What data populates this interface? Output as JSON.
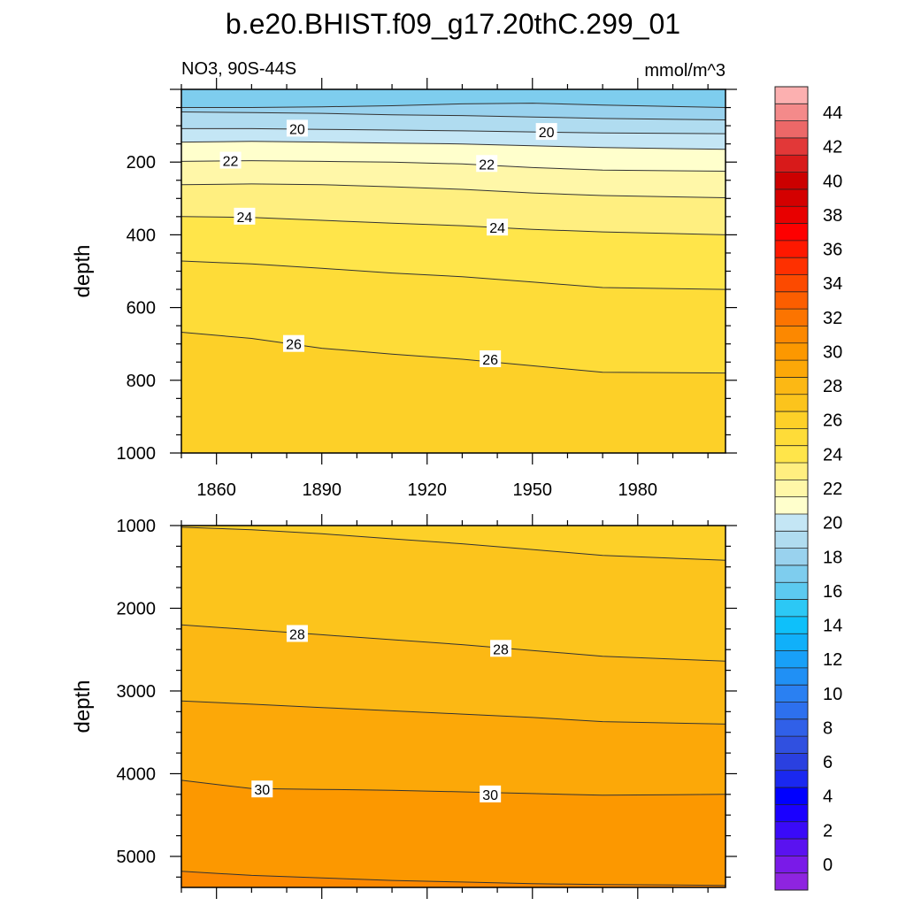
{
  "chart_data": {
    "type": "contour",
    "title": "b.e20.BHIST.f09_g17.20thC.299_01",
    "variable_label": "NO3, 90S-44S",
    "units_label": "mmol/m^3",
    "xaxis": {
      "range": [
        1850,
        2005
      ],
      "ticks": [
        1860,
        1890,
        1920,
        1950,
        1980
      ],
      "tick_labels": [
        "1860",
        "1890",
        "1920",
        "1950",
        "1980"
      ]
    },
    "panels": [
      {
        "name": "upper",
        "ylabel": "depth",
        "ylim": [
          0,
          1000
        ],
        "yticks": [
          200,
          400,
          600,
          800,
          1000
        ],
        "ytick_labels": [
          "200",
          "400",
          "600",
          "800",
          "1000"
        ],
        "contours": [
          {
            "level": 18,
            "depths": [
              50,
              50,
              48,
              45,
              40,
              38,
              43,
              50
            ]
          },
          {
            "level": 19,
            "depths": [
              62,
              64,
              66,
              70,
              72,
              76,
              80,
              84
            ]
          },
          {
            "level": 20,
            "depths": [
              108,
              108,
              110,
              112,
              114,
              117,
              120,
              122
            ]
          },
          {
            "level": 21,
            "depths": [
              145,
              143,
              145,
              148,
              150,
              155,
              160,
              165
            ]
          },
          {
            "level": 22,
            "depths": [
              198,
              196,
              198,
              200,
              205,
              215,
              222,
              225
            ]
          },
          {
            "level": 23,
            "depths": [
              262,
              260,
              262,
              268,
              275,
              285,
              292,
              298
            ]
          },
          {
            "level": 24,
            "depths": [
              350,
              352,
              360,
              368,
              375,
              385,
              392,
              400
            ]
          },
          {
            "level": 25,
            "depths": [
              472,
              480,
              492,
              505,
              515,
              530,
              545,
              550
            ]
          },
          {
            "level": 26,
            "depths": [
              668,
              685,
              712,
              728,
              742,
              760,
              778,
              780
            ]
          }
        ],
        "contour_labels": [
          {
            "text": "20",
            "x": 1883,
            "depth": 108
          },
          {
            "text": "20",
            "x": 1954,
            "depth": 117
          },
          {
            "text": "22",
            "x": 1864,
            "depth": 196
          },
          {
            "text": "22",
            "x": 1937,
            "depth": 205
          },
          {
            "text": "24",
            "x": 1868,
            "depth": 350
          },
          {
            "text": "24",
            "x": 1940,
            "depth": 380
          },
          {
            "text": "26",
            "x": 1882,
            "depth": 700
          },
          {
            "text": "26",
            "x": 1938,
            "depth": 742
          }
        ]
      },
      {
        "name": "lower",
        "ylabel": "depth",
        "ylim": [
          1000,
          5375
        ],
        "yticks": [
          1000,
          2000,
          3000,
          4000,
          5000
        ],
        "ytick_labels": [
          "1000",
          "2000",
          "3000",
          "4000",
          "5000"
        ],
        "contours": [
          {
            "level": 27,
            "depths": [
              1020,
              1050,
              1100,
              1160,
              1220,
              1290,
              1360,
              1420
            ]
          },
          {
            "level": 28,
            "depths": [
              2200,
              2260,
              2320,
              2380,
              2440,
              2510,
              2580,
              2640
            ]
          },
          {
            "level": 29,
            "depths": [
              3120,
              3160,
              3200,
              3240,
              3280,
              3320,
              3370,
              3400
            ]
          },
          {
            "level": 30,
            "depths": [
              4080,
              4180,
              4190,
              4200,
              4220,
              4240,
              4260,
              4250
            ]
          },
          {
            "level": 31,
            "depths": [
              5180,
              5230,
              5260,
              5290,
              5310,
              5330,
              5340,
              5350
            ]
          }
        ],
        "contour_labels": [
          {
            "text": "28",
            "x": 1883,
            "depth": 2310
          },
          {
            "text": "28",
            "x": 1941,
            "depth": 2490
          },
          {
            "text": "30",
            "x": 1873,
            "depth": 4190
          },
          {
            "text": "30",
            "x": 1938,
            "depth": 4250
          }
        ]
      }
    ],
    "sample_years": [
      1850,
      1870,
      1890,
      1910,
      1930,
      1950,
      1970,
      2005
    ],
    "colorbar": {
      "min": -1,
      "step": 1,
      "label_values": [
        0,
        2,
        4,
        6,
        8,
        10,
        12,
        14,
        16,
        18,
        20,
        22,
        24,
        26,
        28,
        30,
        32,
        34,
        36,
        38,
        40,
        42,
        44
      ],
      "colors": [
        "#8e24e0",
        "#7a1ae8",
        "#5a12f0",
        "#3a0af8",
        "#1a00ff",
        "#0000ff",
        "#1a28f0",
        "#2a40e0",
        "#3050e0",
        "#3060e8",
        "#2d70ee",
        "#2a80f2",
        "#2090f5",
        "#18a0f8",
        "#10b0fa",
        "#0ec0fa",
        "#2cc8f5",
        "#5ccaf0",
        "#7ecdee",
        "#99d2ee",
        "#b0dcf0",
        "#c4e6f5",
        "#ffffcc",
        "#fff7a8",
        "#ffef80",
        "#ffe54a",
        "#fedc38",
        "#fdd028",
        "#fcc41c",
        "#fcb814",
        "#fca808",
        "#fc9800",
        "#fc8800",
        "#fc7400",
        "#fc5e00",
        "#fc4a00",
        "#fe3000",
        "#fe1800",
        "#fe0000",
        "#e80000",
        "#d40000",
        "#cc0000",
        "#d81a1a",
        "#e23838",
        "#ec6868",
        "#f48a8a",
        "#fcb0b0"
      ]
    }
  }
}
